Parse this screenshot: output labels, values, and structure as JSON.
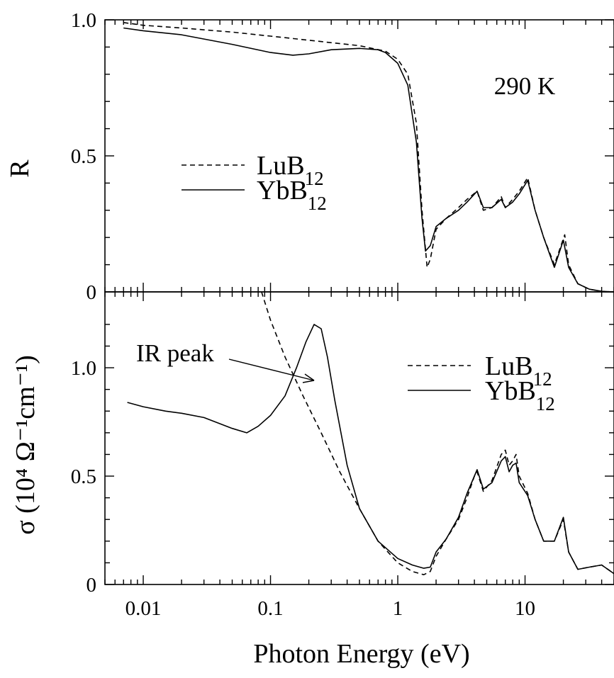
{
  "chart_data": {
    "type": "line",
    "xlabel": "Photon Energy (eV)",
    "xscale": "log",
    "xlim": [
      0.005,
      50
    ],
    "x_ticks": [
      {
        "value": 0.01,
        "label": "0.01"
      },
      {
        "value": 0.1,
        "label": "0.1"
      },
      {
        "value": 1,
        "label": "1"
      },
      {
        "value": 10,
        "label": "10"
      }
    ],
    "panels": [
      {
        "id": "reflectivity",
        "ylabel": "R",
        "ylim": [
          0,
          1.0
        ],
        "y_ticks": [
          {
            "value": 0,
            "label": "0"
          },
          {
            "value": 0.5,
            "label": "0.5"
          },
          {
            "value": 1.0,
            "label": "1.0"
          }
        ],
        "annotation": "290 K",
        "legend": [
          "LuB12",
          "YbB12"
        ],
        "series": [
          {
            "name": "LuB12",
            "style": "dashed",
            "x": [
              0.007,
              0.01,
              0.02,
              0.05,
              0.1,
              0.2,
              0.5,
              0.8,
              1.0,
              1.2,
              1.4,
              1.55,
              1.7,
              1.8,
              2.0,
              2.4,
              3.0,
              3.5,
              4.2,
              4.7,
              5.5,
              6.5,
              7.0,
              8.0,
              9.0,
              10.5,
              12.0,
              14.0,
              17.0,
              20.5,
              22.0,
              26.0,
              32.0,
              40.0,
              50.0
            ],
            "values": [
              0.99,
              0.98,
              0.97,
              0.955,
              0.94,
              0.925,
              0.905,
              0.885,
              0.855,
              0.8,
              0.62,
              0.3,
              0.09,
              0.12,
              0.23,
              0.27,
              0.31,
              0.34,
              0.37,
              0.3,
              0.31,
              0.35,
              0.31,
              0.34,
              0.37,
              0.42,
              0.3,
              0.2,
              0.1,
              0.21,
              0.1,
              0.03,
              0.01,
              0.002,
              0.0
            ]
          },
          {
            "name": "YbB12",
            "style": "solid",
            "x": [
              0.007,
              0.01,
              0.02,
              0.05,
              0.1,
              0.15,
              0.2,
              0.3,
              0.5,
              0.7,
              0.8,
              1.0,
              1.2,
              1.4,
              1.55,
              1.65,
              1.8,
              2.0,
              2.4,
              3.0,
              3.5,
              4.2,
              4.7,
              5.5,
              6.5,
              7.0,
              8.0,
              9.0,
              10.5,
              12.0,
              14.0,
              17.0,
              20.0,
              22.0,
              26.0,
              32.0,
              40.0,
              50.0
            ],
            "values": [
              0.97,
              0.96,
              0.945,
              0.91,
              0.88,
              0.87,
              0.875,
              0.89,
              0.895,
              0.89,
              0.88,
              0.84,
              0.76,
              0.55,
              0.27,
              0.15,
              0.17,
              0.24,
              0.27,
              0.3,
              0.33,
              0.37,
              0.31,
              0.31,
              0.34,
              0.31,
              0.33,
              0.36,
              0.41,
              0.3,
              0.2,
              0.09,
              0.19,
              0.09,
              0.03,
              0.01,
              0.002,
              0.0
            ]
          }
        ]
      },
      {
        "id": "conductivity",
        "ylabel": "σ (10⁴ Ω⁻¹cm⁻¹)",
        "ylim": [
          0,
          1.35
        ],
        "y_ticks": [
          {
            "value": 0,
            "label": "0"
          },
          {
            "value": 0.5,
            "label": "0.5"
          },
          {
            "value": 1.0,
            "label": "1.0"
          }
        ],
        "annotation": "IR peak",
        "legend": [
          "LuB12",
          "YbB12"
        ],
        "series": [
          {
            "name": "LuB12",
            "style": "dashed",
            "x": [
              0.085,
              0.1,
              0.13,
              0.18,
              0.25,
              0.35,
              0.5,
              0.7,
              1.0,
              1.3,
              1.6,
              1.8,
              2.0,
              2.4,
              3.0,
              3.5,
              4.0,
              4.2,
              4.7,
              5.5,
              6.5,
              7.0,
              7.5,
              8.0,
              8.5,
              9.0,
              10.5,
              12.0,
              14.0,
              17.0,
              20.0,
              22.0,
              26.0,
              32.0,
              40.0,
              50.0
            ],
            "values": [
              1.35,
              1.22,
              1.05,
              0.87,
              0.7,
              0.52,
              0.35,
              0.2,
              0.1,
              0.06,
              0.045,
              0.06,
              0.13,
              0.21,
              0.3,
              0.4,
              0.5,
              0.52,
              0.43,
              0.48,
              0.6,
              0.62,
              0.55,
              0.57,
              0.6,
              0.5,
              0.42,
              0.3,
              0.2,
              0.2,
              0.3,
              0.15,
              0.07,
              0.08,
              0.09,
              0.05
            ]
          },
          {
            "name": "YbB12",
            "style": "solid",
            "x": [
              0.0075,
              0.01,
              0.015,
              0.02,
              0.03,
              0.05,
              0.065,
              0.08,
              0.1,
              0.13,
              0.16,
              0.19,
              0.22,
              0.25,
              0.28,
              0.32,
              0.4,
              0.5,
              0.7,
              1.0,
              1.3,
              1.6,
              1.8,
              2.0,
              2.4,
              3.0,
              3.5,
              4.0,
              4.2,
              4.7,
              5.5,
              6.5,
              7.0,
              7.5,
              8.0,
              8.5,
              9.0,
              10.5,
              12.0,
              14.0,
              17.0,
              20.0,
              22.0,
              26.0,
              32.0,
              40.0,
              50.0
            ],
            "values": [
              0.84,
              0.82,
              0.8,
              0.79,
              0.77,
              0.72,
              0.7,
              0.73,
              0.78,
              0.87,
              1.0,
              1.12,
              1.2,
              1.18,
              1.05,
              0.85,
              0.55,
              0.35,
              0.2,
              0.12,
              0.09,
              0.075,
              0.08,
              0.15,
              0.21,
              0.31,
              0.42,
              0.5,
              0.53,
              0.44,
              0.47,
              0.57,
              0.59,
              0.52,
              0.55,
              0.56,
              0.47,
              0.41,
              0.3,
              0.2,
              0.2,
              0.31,
              0.15,
              0.07,
              0.08,
              0.09,
              0.05
            ]
          }
        ]
      }
    ]
  }
}
